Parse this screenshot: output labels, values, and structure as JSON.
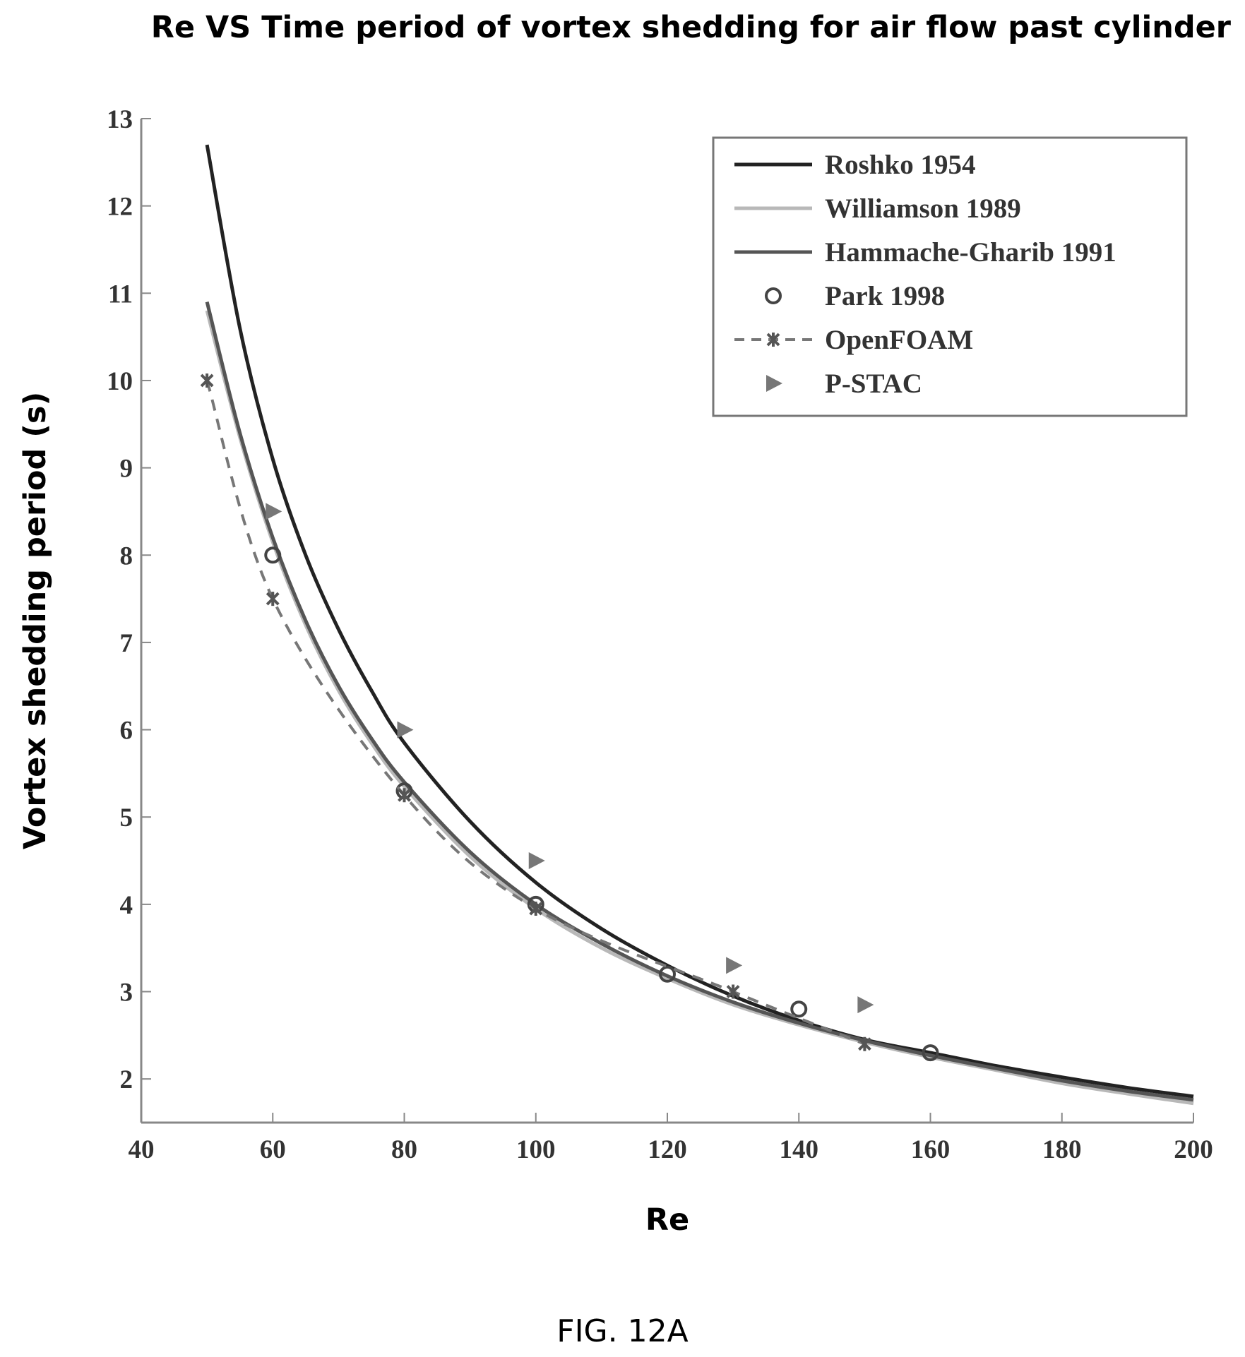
{
  "chart_data": {
    "type": "line",
    "title": "Re VS Time period of vortex shedding for air flow past cylinder",
    "xlabel": "Re",
    "ylabel": "Vortex shedding period (s)",
    "caption": "FIG. 12A",
    "xlim": [
      40,
      200
    ],
    "ylim": [
      1.5,
      13
    ],
    "xticks": [
      40,
      60,
      80,
      100,
      120,
      140,
      160,
      180,
      200
    ],
    "yticks": [
      2,
      3,
      4,
      5,
      6,
      7,
      8,
      9,
      10,
      11,
      12,
      13
    ],
    "grid": false,
    "legend_position": "top-right",
    "series": [
      {
        "name": "Roshko 1954",
        "kind": "line",
        "color": "#222222",
        "x": [
          50,
          55,
          60,
          65,
          70,
          75,
          80,
          90,
          100,
          110,
          120,
          130,
          140,
          150,
          160,
          170,
          180,
          190,
          200
        ],
        "y": [
          12.7,
          10.6,
          9.1,
          8.0,
          7.15,
          6.45,
          5.85,
          4.95,
          4.25,
          3.72,
          3.3,
          2.95,
          2.67,
          2.45,
          2.3,
          2.15,
          2.02,
          1.9,
          1.8
        ]
      },
      {
        "name": "Williamson 1989",
        "kind": "line",
        "color": "#b8b8b8",
        "x": [
          50,
          55,
          60,
          65,
          70,
          75,
          80,
          90,
          100,
          110,
          120,
          130,
          140,
          150,
          160,
          170,
          180,
          190,
          200
        ],
        "y": [
          10.8,
          9.35,
          8.15,
          7.2,
          6.45,
          5.85,
          5.35,
          4.55,
          3.95,
          3.5,
          3.15,
          2.85,
          2.62,
          2.42,
          2.25,
          2.1,
          1.95,
          1.83,
          1.72
        ]
      },
      {
        "name": "Hammache-Gharib 1991",
        "kind": "line",
        "color": "#555555",
        "x": [
          50,
          55,
          60,
          65,
          70,
          75,
          80,
          90,
          100,
          110,
          120,
          130,
          140,
          150,
          160,
          170,
          180,
          190,
          200
        ],
        "y": [
          10.9,
          9.4,
          8.2,
          7.25,
          6.5,
          5.9,
          5.4,
          4.6,
          4.0,
          3.55,
          3.18,
          2.88,
          2.64,
          2.44,
          2.27,
          2.12,
          1.98,
          1.86,
          1.76
        ]
      },
      {
        "name": "Park 1998",
        "kind": "marker",
        "marker": "circle",
        "color": "#444444",
        "x": [
          60,
          80,
          100,
          120,
          140,
          160
        ],
        "y": [
          8.0,
          5.3,
          4.0,
          3.2,
          2.8,
          2.3
        ]
      },
      {
        "name": "OpenFOAM",
        "kind": "dashed-marker",
        "marker": "star",
        "color": "#777777",
        "x": [
          50,
          60,
          80,
          100,
          130,
          150
        ],
        "y": [
          10.0,
          7.5,
          5.25,
          3.95,
          3.0,
          2.4
        ]
      },
      {
        "name": "P-STAC",
        "kind": "marker",
        "marker": "triangle-right",
        "color": "#777777",
        "x": [
          60,
          80,
          100,
          130,
          150
        ],
        "y": [
          8.5,
          6.0,
          4.5,
          3.3,
          2.85
        ]
      }
    ]
  }
}
